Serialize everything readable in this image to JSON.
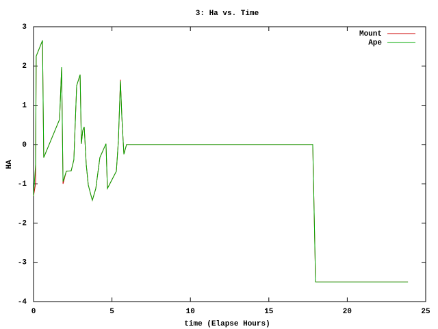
{
  "chart_data": {
    "type": "line",
    "title": "3: Ha vs. Time",
    "x_label": "time (Elapse Hours)",
    "y_label": "HA",
    "x": [
      0,
      0.13,
      0.17,
      0.57,
      0.65,
      1.66,
      1.79,
      1.88,
      2.09,
      2.4,
      2.57,
      2.75,
      2.97,
      3.05,
      3.14,
      3.23,
      3.36,
      3.49,
      3.66,
      3.75,
      3.97,
      4.23,
      4.62,
      4.71,
      5.28,
      5.41,
      5.54,
      5.63,
      5.76,
      5.93,
      17.8,
      17.98,
      23.87
    ],
    "series": [
      {
        "name": "Mount",
        "color": "#cc0000",
        "values": [
          -1.31,
          -1.0,
          2.25,
          2.65,
          -0.33,
          0.64,
          1.97,
          -1.0,
          -0.68,
          -0.67,
          -0.39,
          1.5,
          1.78,
          0.02,
          0.36,
          0.45,
          -0.51,
          -1.03,
          -1.29,
          -1.42,
          -1.12,
          -0.33,
          0.02,
          -1.12,
          -0.68,
          0.1,
          1.65,
          0.71,
          -0.25,
          0,
          0,
          -3.5,
          -3.5
        ]
      },
      {
        "name": "Ape",
        "color": "#00aa00",
        "values": [
          -1.31,
          -0.51,
          2.25,
          2.65,
          -0.33,
          0.64,
          1.97,
          -0.94,
          -0.68,
          -0.67,
          -0.39,
          1.5,
          1.78,
          0.02,
          0.36,
          0.45,
          -0.51,
          -1.03,
          -1.29,
          -1.42,
          -1.12,
          -0.33,
          0.02,
          -1.12,
          -0.68,
          0.1,
          1.62,
          0.71,
          -0.25,
          0,
          0,
          -3.5,
          -3.5
        ]
      }
    ],
    "xlim": [
      0,
      25
    ],
    "xticks": [
      0,
      5,
      10,
      15,
      20,
      25
    ],
    "ylim": [
      -4,
      3
    ],
    "yticks": [
      -4,
      -3,
      -2,
      -1,
      0,
      1,
      2,
      3
    ],
    "legend": "top-right"
  }
}
